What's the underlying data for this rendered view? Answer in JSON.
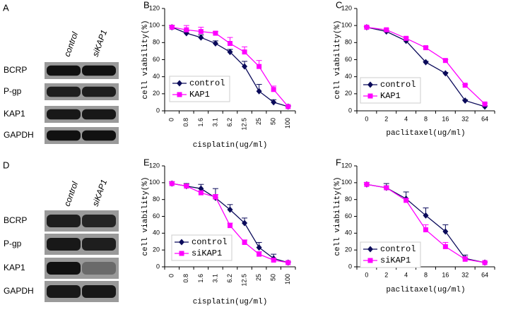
{
  "chart_data": [
    {
      "type": "line",
      "label": "B",
      "xlabel": "cisplatin(ug/ml)",
      "ylabel": "cell viability(%)",
      "categories": [
        "0",
        "0.8",
        "1.6",
        "3.1",
        "6.2",
        "12.5",
        "25",
        "50",
        "100"
      ],
      "ylim": [
        0,
        120
      ],
      "yticks": [
        0,
        20,
        40,
        60,
        80,
        100,
        120
      ],
      "legend": "lower left",
      "series": [
        {
          "name": "control",
          "color": "#0a0a5a",
          "marker": "diamond",
          "values": [
            98,
            91,
            86,
            79,
            69,
            52,
            23,
            10,
            5
          ],
          "errors": [
            2,
            3,
            3,
            3,
            3,
            6,
            8,
            3,
            1
          ]
        },
        {
          "name": "KAP1",
          "color": "#ff00ff",
          "marker": "square",
          "values": [
            98,
            95,
            93,
            91,
            79,
            69,
            52,
            25,
            5
          ],
          "errors": [
            2,
            5,
            5,
            2,
            7,
            6,
            7,
            4,
            1
          ]
        }
      ]
    },
    {
      "type": "line",
      "label": "C",
      "xlabel": "paclitaxel(ug/ml)",
      "ylabel": "cell viability(%)",
      "categories": [
        "0",
        "2",
        "4",
        "8",
        "16",
        "32",
        "64"
      ],
      "ylim": [
        0,
        120
      ],
      "yticks": [
        0,
        20,
        40,
        60,
        80,
        100,
        120
      ],
      "legend": "lower left",
      "series": [
        {
          "name": "control",
          "color": "#0a0a5a",
          "marker": "diamond",
          "values": [
            98,
            93,
            82,
            57,
            44,
            12,
            5
          ],
          "errors": [
            1,
            1,
            1,
            1,
            1,
            1,
            1
          ]
        },
        {
          "name": "KAP1",
          "color": "#ff00ff",
          "marker": "square",
          "values": [
            98,
            95,
            85,
            74,
            59,
            30,
            8
          ],
          "errors": [
            1,
            1,
            1,
            1,
            1,
            1,
            1
          ]
        }
      ]
    },
    {
      "type": "line",
      "label": "E",
      "xlabel": "cisplatin(ug/ml)",
      "ylabel": "cell viability(%)",
      "categories": [
        "0",
        "0.8",
        "1.6",
        "3.1",
        "6.2",
        "12.5",
        "25",
        "50",
        "100"
      ],
      "ylim": [
        0,
        120
      ],
      "yticks": [
        0,
        20,
        40,
        60,
        80,
        100,
        120
      ],
      "legend": "lower left",
      "series": [
        {
          "name": "control",
          "color": "#0a0a5a",
          "marker": "diamond",
          "values": [
            99,
            96,
            93,
            82,
            68,
            52,
            23,
            10,
            5
          ],
          "errors": [
            2,
            3,
            5,
            11,
            6,
            6,
            6,
            5,
            1
          ]
        },
        {
          "name": "siKAP1",
          "color": "#ff00ff",
          "marker": "square",
          "values": [
            99,
            96,
            88,
            83,
            49,
            29,
            15,
            8,
            5
          ],
          "errors": [
            2,
            2,
            2,
            3,
            3,
            3,
            3,
            2,
            1
          ]
        }
      ]
    },
    {
      "type": "line",
      "label": "F",
      "xlabel": "paclitaxel(ug/ml)",
      "ylabel": "cell viability(%)",
      "categories": [
        "0",
        "2",
        "4",
        "8",
        "16",
        "32",
        "64"
      ],
      "ylim": [
        0,
        120
      ],
      "yticks": [
        0,
        20,
        40,
        60,
        80,
        100,
        120
      ],
      "legend": "lower left",
      "series": [
        {
          "name": "control",
          "color": "#0a0a5a",
          "marker": "diamond",
          "values": [
            98,
            94,
            81,
            61,
            42,
            10,
            5
          ],
          "errors": [
            2,
            5,
            8,
            9,
            8,
            4,
            1
          ]
        },
        {
          "name": "siKAP1",
          "color": "#ff00ff",
          "marker": "square",
          "values": [
            98,
            94,
            79,
            44,
            24,
            9,
            5
          ],
          "errors": [
            2,
            2,
            2,
            6,
            5,
            3,
            1
          ]
        }
      ]
    }
  ],
  "blots": [
    {
      "label": "A",
      "lanes": [
        "control",
        "siKAP1"
      ],
      "rows": [
        "BCRP",
        "P-gp",
        "KAP1",
        "GAPDH"
      ]
    },
    {
      "label": "D",
      "lanes": [
        "control",
        "siKAP1"
      ],
      "rows": [
        "BCRP",
        "P-gp",
        "KAP1",
        "GAPDH"
      ]
    }
  ]
}
